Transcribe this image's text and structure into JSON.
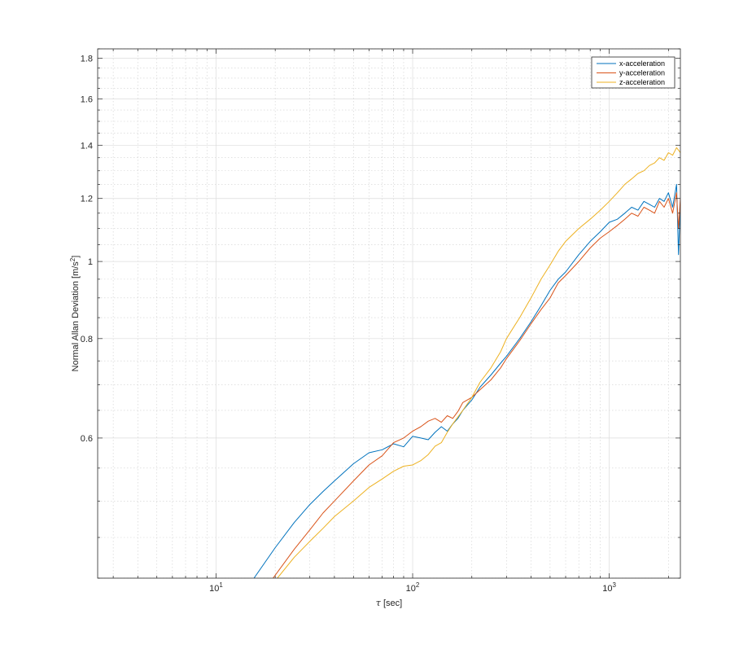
{
  "chart_data": {
    "type": "line",
    "xlabel_symbol": "τ",
    "xlabel_text": " [sec]",
    "ylabel_text": "Normal Allan Deviation [m/s",
    "ylabel_sup": "2",
    "ylabel_close": "]",
    "xscale": "log",
    "yscale": "log",
    "xlim": [
      2.5,
      2300
    ],
    "ylim": [
      0.4,
      1.85
    ],
    "grid": true,
    "legend_position": "top-right",
    "x_ticks": [
      {
        "value": 10,
        "base": "10",
        "exp": "1"
      },
      {
        "value": 100,
        "base": "10",
        "exp": "2"
      },
      {
        "value": 1000,
        "base": "10",
        "exp": "3"
      }
    ],
    "y_ticks": [
      {
        "value": 0.6,
        "label": "0.6"
      },
      {
        "value": 0.8,
        "label": "0.8"
      },
      {
        "value": 1.0,
        "label": "1"
      },
      {
        "value": 1.2,
        "label": "1.2"
      },
      {
        "value": 1.4,
        "label": "1.4"
      },
      {
        "value": 1.6,
        "label": "1.6"
      },
      {
        "value": 1.8,
        "label": "1.8"
      }
    ],
    "series": [
      {
        "name": "x-acceleration",
        "color": "#0072BD",
        "x": [
          15.6,
          20,
          25,
          30,
          35,
          40,
          50,
          60,
          70,
          80,
          90,
          100,
          110,
          120,
          130,
          140,
          150,
          160,
          170,
          180,
          200,
          220,
          250,
          280,
          300,
          350,
          400,
          450,
          500,
          550,
          600,
          700,
          800,
          900,
          1000,
          1100,
          1200,
          1300,
          1400,
          1500,
          1600,
          1700,
          1800,
          1900,
          2000,
          2100,
          2200,
          2250,
          2300
        ],
        "y": [
          0.4,
          0.437,
          0.47,
          0.495,
          0.514,
          0.53,
          0.557,
          0.575,
          0.58,
          0.59,
          0.585,
          0.603,
          0.6,
          0.597,
          0.61,
          0.62,
          0.612,
          0.625,
          0.635,
          0.65,
          0.67,
          0.695,
          0.72,
          0.745,
          0.76,
          0.8,
          0.84,
          0.88,
          0.92,
          0.95,
          0.97,
          1.02,
          1.06,
          1.09,
          1.12,
          1.13,
          1.15,
          1.17,
          1.16,
          1.19,
          1.18,
          1.17,
          1.2,
          1.19,
          1.22,
          1.17,
          1.25,
          1.02,
          1.19
        ]
      },
      {
        "name": "y-acceleration",
        "color": "#D95319",
        "x": [
          19.5,
          25,
          30,
          35,
          40,
          50,
          60,
          70,
          80,
          90,
          100,
          110,
          120,
          130,
          140,
          150,
          160,
          170,
          180,
          200,
          220,
          250,
          280,
          300,
          350,
          400,
          450,
          500,
          550,
          600,
          700,
          800,
          900,
          1000,
          1100,
          1200,
          1300,
          1400,
          1500,
          1600,
          1700,
          1800,
          1900,
          2000,
          2100,
          2200,
          2250,
          2300
        ],
        "y": [
          0.4,
          0.435,
          0.46,
          0.483,
          0.5,
          0.53,
          0.555,
          0.57,
          0.592,
          0.6,
          0.612,
          0.62,
          0.63,
          0.635,
          0.628,
          0.64,
          0.635,
          0.648,
          0.665,
          0.675,
          0.69,
          0.71,
          0.735,
          0.755,
          0.795,
          0.835,
          0.87,
          0.9,
          0.94,
          0.96,
          1.0,
          1.04,
          1.07,
          1.09,
          1.11,
          1.13,
          1.15,
          1.14,
          1.17,
          1.16,
          1.15,
          1.19,
          1.17,
          1.2,
          1.15,
          1.22,
          1.1,
          1.2
        ]
      },
      {
        "name": "z-acceleration",
        "color": "#EDB120",
        "x": [
          20.5,
          25,
          30,
          35,
          40,
          50,
          60,
          70,
          80,
          90,
          100,
          110,
          120,
          130,
          140,
          150,
          160,
          180,
          200,
          220,
          250,
          280,
          300,
          350,
          400,
          450,
          500,
          550,
          600,
          700,
          800,
          900,
          1000,
          1100,
          1200,
          1300,
          1400,
          1500,
          1600,
          1700,
          1800,
          1900,
          2000,
          2100,
          2200,
          2300
        ],
        "y": [
          0.4,
          0.425,
          0.445,
          0.462,
          0.478,
          0.5,
          0.52,
          0.533,
          0.545,
          0.553,
          0.555,
          0.562,
          0.572,
          0.586,
          0.592,
          0.61,
          0.625,
          0.65,
          0.675,
          0.705,
          0.735,
          0.77,
          0.8,
          0.85,
          0.9,
          0.95,
          0.99,
          1.03,
          1.06,
          1.1,
          1.13,
          1.16,
          1.19,
          1.22,
          1.25,
          1.27,
          1.29,
          1.3,
          1.32,
          1.33,
          1.35,
          1.34,
          1.37,
          1.36,
          1.39,
          1.37
        ]
      }
    ]
  }
}
